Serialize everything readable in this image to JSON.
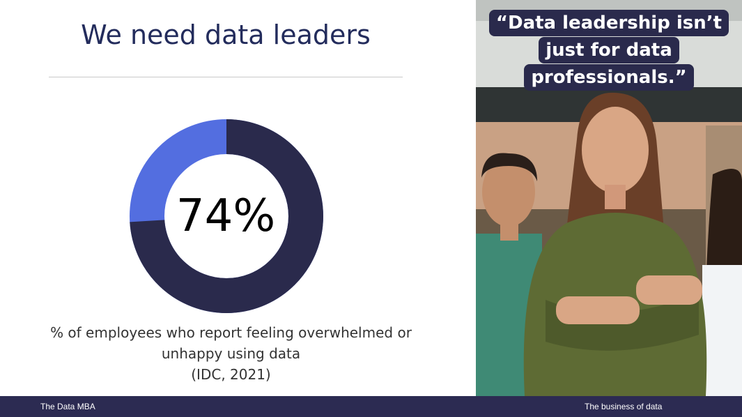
{
  "slide": {
    "title": "We need data leaders",
    "stat_label": "74%",
    "stat_fraction": 0.74,
    "caption_line1": "% of employees who report feeling overwhelmed or",
    "caption_line2": "unhappy using data",
    "caption_line3": "(IDC, 2021)"
  },
  "quote": {
    "line1": "“Data leadership isn’t",
    "line2": "just for data",
    "line3": "professionals.”"
  },
  "footer": {
    "left": "The Data MBA",
    "right": "The business of data"
  },
  "colors": {
    "title": "#232c5c",
    "donut_primary": "#2a2a4c",
    "donut_secondary": "#536ee0",
    "footer_bg": "#2c2b52"
  },
  "icons": {
    "photo": "team-photo"
  }
}
